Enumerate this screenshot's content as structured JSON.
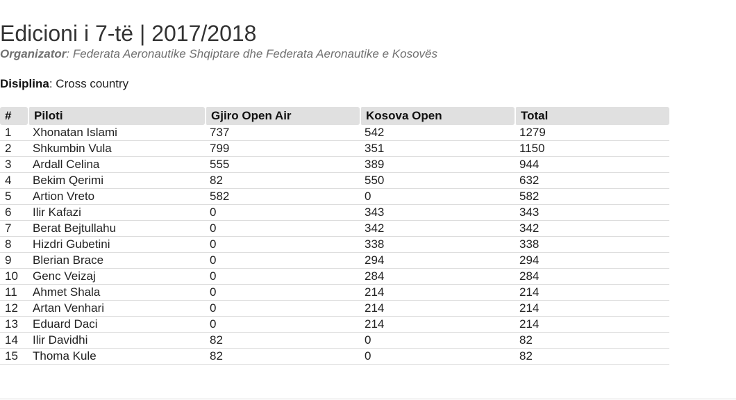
{
  "page": {
    "title": "Edicioni i 7-të | 2017/2018",
    "organizer_label": "Organizator",
    "organizer_text": ": Federata Aeronautike Shqiptare dhe Federata Aeronautike e Kosovës",
    "discipline_label": "Disiplina",
    "discipline_text": ": Cross country"
  },
  "table": {
    "headers": [
      "#",
      "Piloti",
      "Gjiro Open Air",
      "Kosova Open",
      "Total"
    ],
    "rows": [
      [
        "1",
        "Xhonatan Islami",
        "737",
        "542",
        "1279"
      ],
      [
        "2",
        "Shkumbin Vula",
        "799",
        "351",
        "1150"
      ],
      [
        "3",
        "Ardall Celina",
        "555",
        "389",
        "944"
      ],
      [
        "4",
        "Bekim Qerimi",
        "82",
        "550",
        "632"
      ],
      [
        "5",
        "Artion Vreto",
        "582",
        "0",
        "582"
      ],
      [
        "6",
        "Ilir Kafazi",
        "0",
        "343",
        "343"
      ],
      [
        "7",
        "Berat Bejtullahu",
        "0",
        "342",
        "342"
      ],
      [
        "8",
        "Hizdri Gubetini",
        "0",
        "338",
        "338"
      ],
      [
        "9",
        "Blerian Brace",
        "0",
        "294",
        "294"
      ],
      [
        "10",
        "Genc Veizaj",
        "0",
        "284",
        "284"
      ],
      [
        "11",
        "Ahmet Shala",
        "0",
        "214",
        "214"
      ],
      [
        "12",
        "Artan Venhari",
        "0",
        "214",
        "214"
      ],
      [
        "13",
        "Eduard Daci",
        "0",
        "214",
        "214"
      ],
      [
        "14",
        "Ilir Davidhi",
        "82",
        "0",
        "82"
      ],
      [
        "15",
        "Thoma Kule",
        "82",
        "0",
        "82"
      ]
    ]
  }
}
